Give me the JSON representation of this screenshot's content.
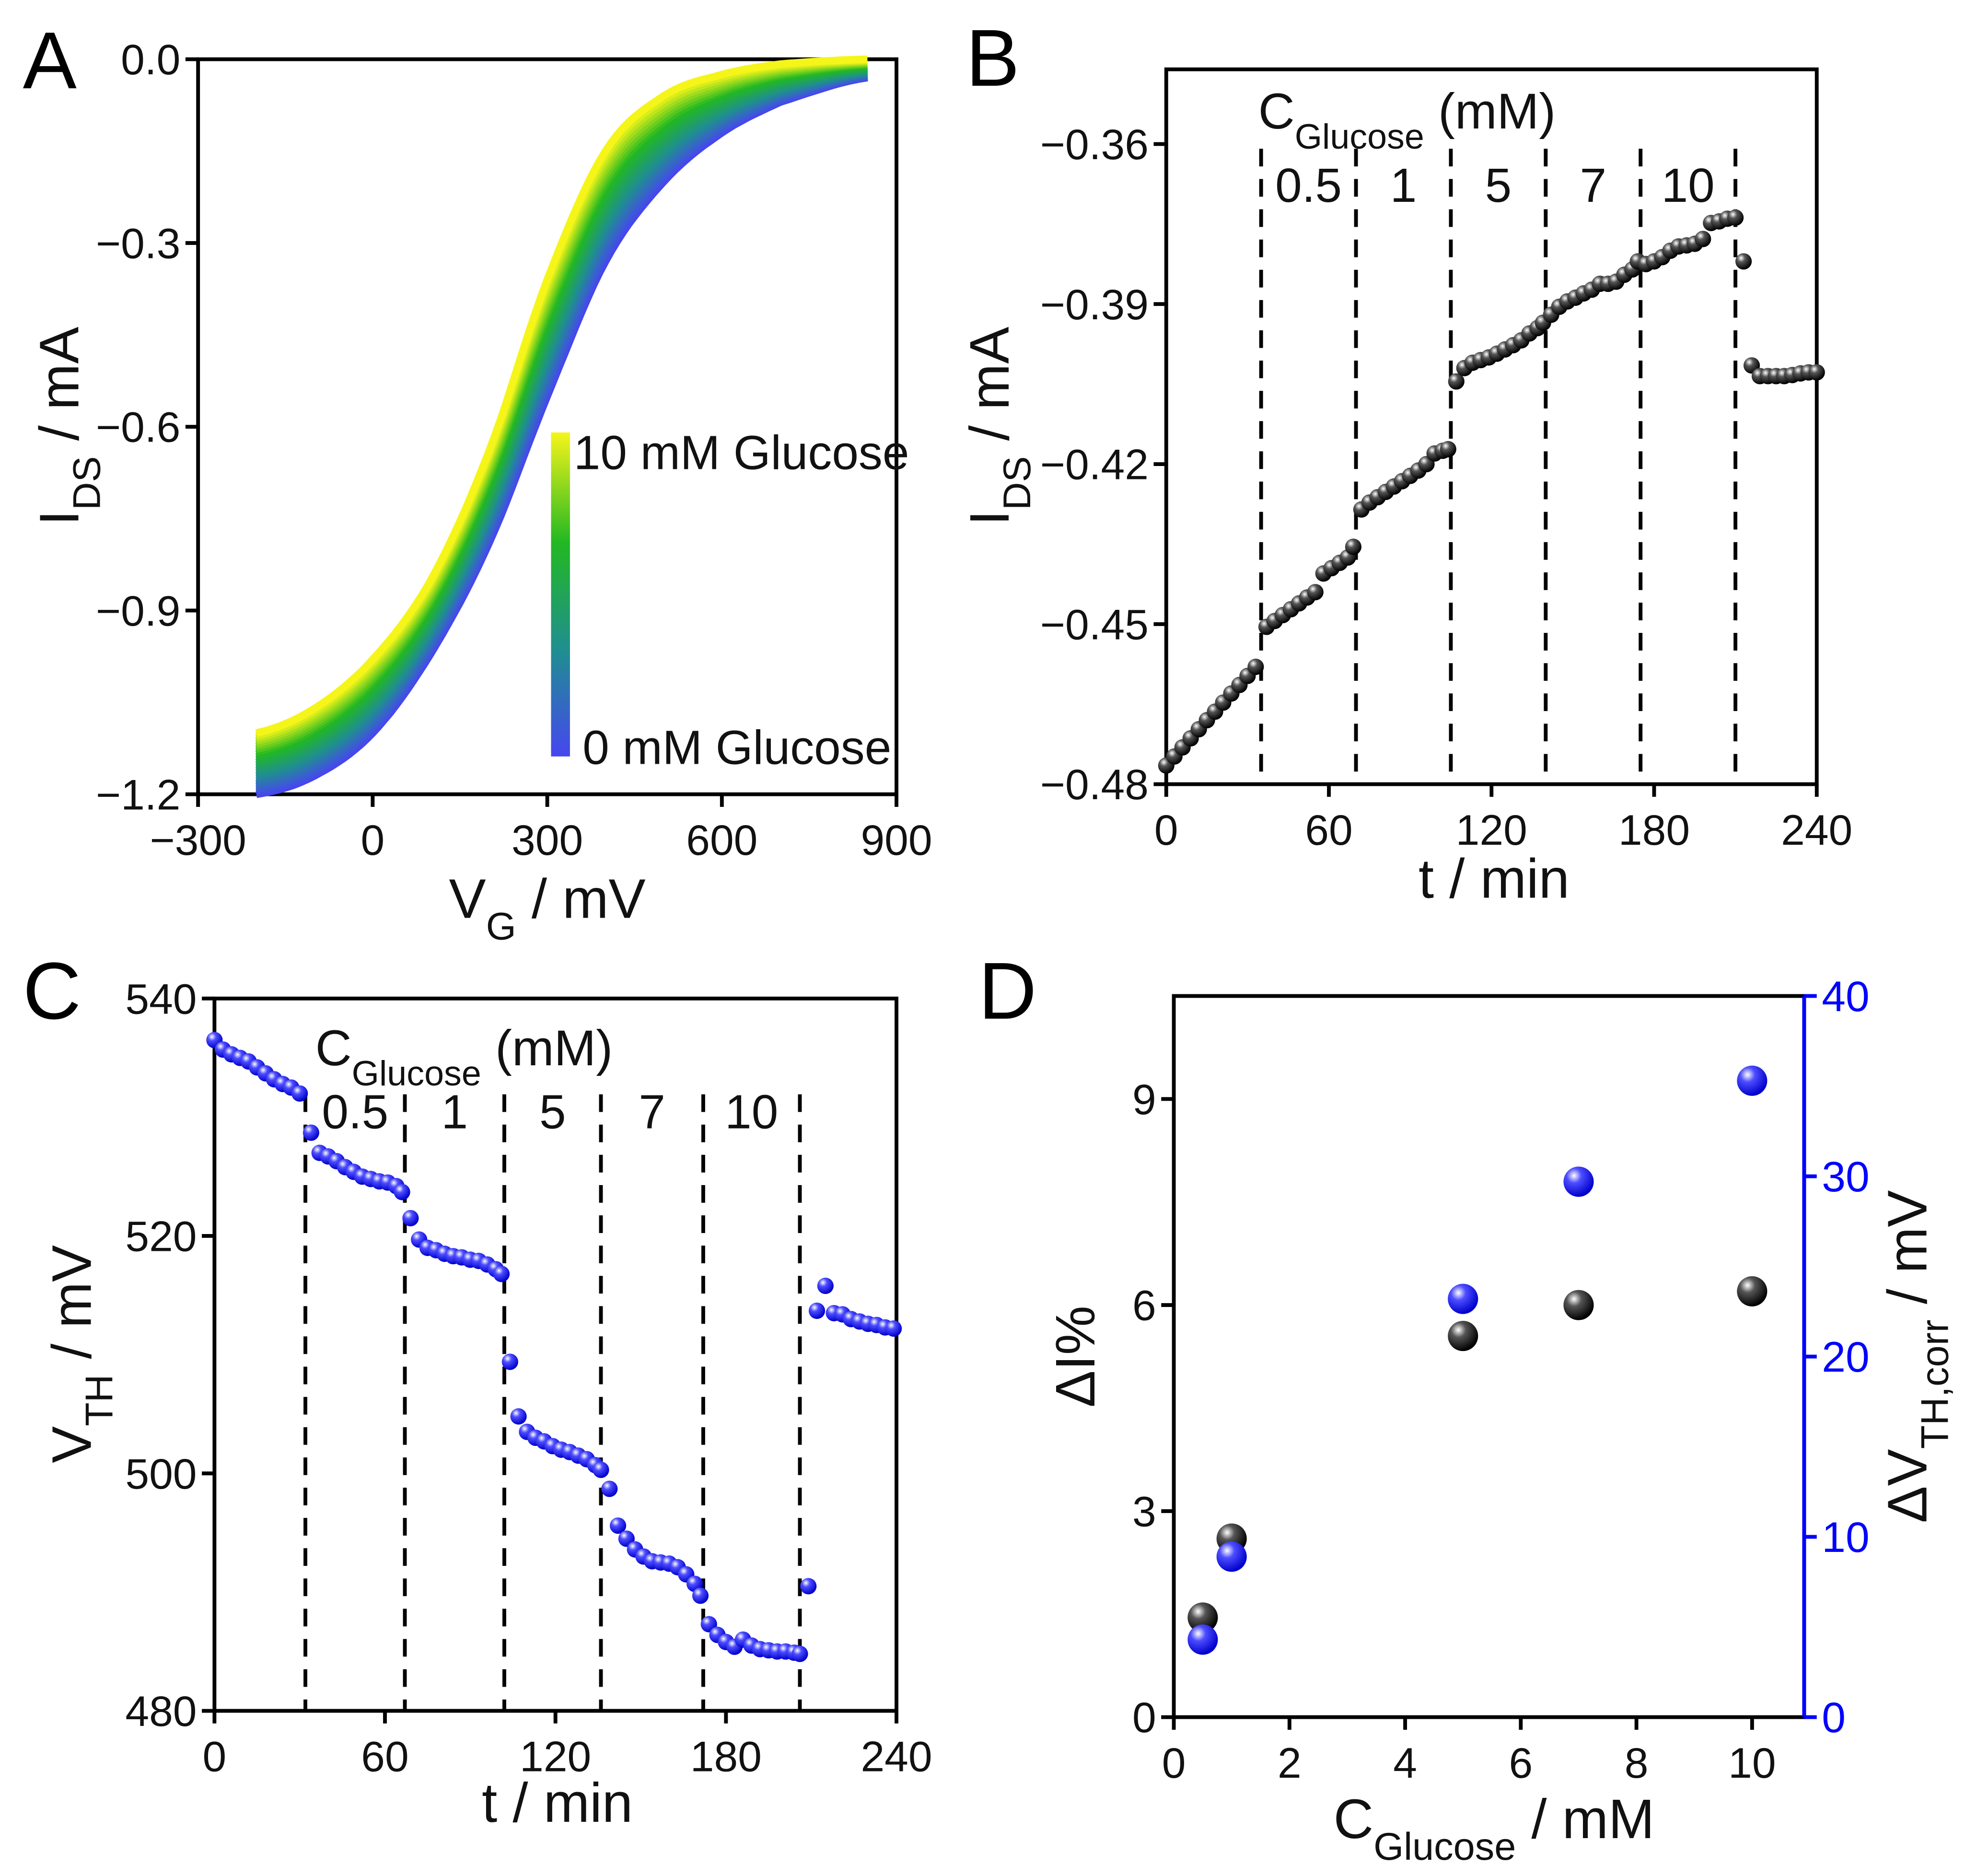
{
  "chart_data": [
    {
      "panel": "A",
      "type": "line",
      "xlabel": {
        "main": "V",
        "sub": "G",
        "rest": " / mV"
      },
      "ylabel": {
        "main": "I",
        "sub": "DS",
        "rest": " / mA"
      },
      "xlim": [
        -300,
        900
      ],
      "ylim": [
        -1.2,
        0.0
      ],
      "xticks": [
        "−300",
        "0",
        "300",
        "600",
        "900"
      ],
      "xtick_values": [
        -300,
        0,
        300,
        600,
        900
      ],
      "yticks": [
        "0.0",
        "−0.3",
        "−0.6",
        "−0.9",
        "−1.2"
      ],
      "ytick_values": [
        0.0,
        -0.3,
        -0.6,
        -0.9,
        -1.2
      ],
      "colorbar": {
        "top_label": "10 mM Glucose",
        "bottom_label": "0 mM Glucose",
        "colors": [
          "#4646f0",
          "#1f8f8f",
          "#22b822",
          "#f5f51a"
        ]
      },
      "curve_count": 24,
      "series": [
        {
          "name": "0 mM Glucose",
          "x": [
            -200,
            -100,
            0,
            100,
            200,
            300,
            400,
            500,
            600,
            700,
            850
          ],
          "y": [
            -1.2,
            -1.17,
            -1.1,
            -0.97,
            -0.79,
            -0.55,
            -0.33,
            -0.2,
            -0.12,
            -0.07,
            -0.03
          ]
        },
        {
          "name": "10 mM Glucose",
          "x": [
            -200,
            -100,
            0,
            100,
            200,
            300,
            400,
            500,
            600,
            700,
            850
          ],
          "y": [
            -1.1,
            -1.06,
            -0.98,
            -0.85,
            -0.64,
            -0.36,
            -0.15,
            -0.06,
            -0.025,
            -0.008,
            0.0
          ]
        }
      ]
    },
    {
      "panel": "B",
      "type": "scatter",
      "xlabel": "t / min",
      "ylabel": {
        "main": "I",
        "sub": "DS",
        "rest": " / mA"
      },
      "xlim": [
        0,
        240
      ],
      "ylim": [
        -0.48,
        -0.346
      ],
      "xticks": [
        "0",
        "60",
        "120",
        "180",
        "240"
      ],
      "xtick_values": [
        0,
        60,
        120,
        180,
        240
      ],
      "yticks": [
        "−0.36",
        "−0.39",
        "−0.42",
        "−0.45",
        "−0.48"
      ],
      "ytick_values": [
        -0.36,
        -0.39,
        -0.42,
        -0.45,
        -0.48
      ],
      "annotation": {
        "main": "C",
        "sub": "Glucose",
        "rest": " (mM)"
      },
      "dashed_x": [
        35,
        70,
        105,
        140,
        175,
        210
      ],
      "segment_labels": [
        "0.5",
        "1",
        "5",
        "7",
        "10"
      ],
      "points": [
        [
          0,
          -0.4765
        ],
        [
          3,
          -0.4748
        ],
        [
          6,
          -0.4731
        ],
        [
          9,
          -0.4714
        ],
        [
          12,
          -0.4697
        ],
        [
          15,
          -0.468
        ],
        [
          18,
          -0.4664
        ],
        [
          21,
          -0.4647
        ],
        [
          24,
          -0.463
        ],
        [
          27,
          -0.4614
        ],
        [
          30,
          -0.4597
        ],
        [
          33,
          -0.458
        ],
        [
          37,
          -0.4505
        ],
        [
          40,
          -0.4494
        ],
        [
          43,
          -0.4483
        ],
        [
          46,
          -0.4472
        ],
        [
          49,
          -0.4461
        ],
        [
          52,
          -0.445
        ],
        [
          55,
          -0.444
        ],
        [
          58,
          -0.4405
        ],
        [
          61,
          -0.4395
        ],
        [
          64,
          -0.4385
        ],
        [
          67,
          -0.4375
        ],
        [
          69,
          -0.4355
        ],
        [
          72,
          -0.4285
        ],
        [
          75,
          -0.4272
        ],
        [
          78,
          -0.4262
        ],
        [
          81,
          -0.4252
        ],
        [
          84,
          -0.4242
        ],
        [
          87,
          -0.4232
        ],
        [
          90,
          -0.4222
        ],
        [
          93,
          -0.4212
        ],
        [
          96,
          -0.42
        ],
        [
          99,
          -0.418
        ],
        [
          102,
          -0.4175
        ],
        [
          104,
          -0.4172
        ],
        [
          107,
          -0.4045
        ],
        [
          110,
          -0.402
        ],
        [
          113,
          -0.401
        ],
        [
          116,
          -0.4005
        ],
        [
          119,
          -0.4
        ],
        [
          122,
          -0.3993
        ],
        [
          125,
          -0.3985
        ],
        [
          128,
          -0.3977
        ],
        [
          131,
          -0.3968
        ],
        [
          134,
          -0.3955
        ],
        [
          137,
          -0.3945
        ],
        [
          139,
          -0.3935
        ],
        [
          142,
          -0.392
        ],
        [
          145,
          -0.3905
        ],
        [
          148,
          -0.3895
        ],
        [
          151,
          -0.3888
        ],
        [
          154,
          -0.388
        ],
        [
          157,
          -0.3873
        ],
        [
          160,
          -0.3862
        ],
        [
          163,
          -0.3862
        ],
        [
          166,
          -0.3858
        ],
        [
          169,
          -0.3845
        ],
        [
          172,
          -0.3835
        ],
        [
          174,
          -0.382
        ],
        [
          177,
          -0.3825
        ],
        [
          180,
          -0.382
        ],
        [
          183,
          -0.3812
        ],
        [
          186,
          -0.38
        ],
        [
          189,
          -0.3792
        ],
        [
          192,
          -0.379
        ],
        [
          195,
          -0.3787
        ],
        [
          198,
          -0.3778
        ],
        [
          201,
          -0.3748
        ],
        [
          204,
          -0.3745
        ],
        [
          207,
          -0.374
        ],
        [
          210,
          -0.3738
        ],
        [
          213,
          -0.382
        ],
        [
          216,
          -0.4015
        ],
        [
          219,
          -0.4035
        ],
        [
          222,
          -0.4035
        ],
        [
          225,
          -0.4035
        ],
        [
          228,
          -0.4035
        ],
        [
          231,
          -0.4033
        ],
        [
          234,
          -0.403
        ],
        [
          237,
          -0.4028
        ],
        [
          240,
          -0.4028
        ]
      ]
    },
    {
      "panel": "C",
      "type": "scatter",
      "xlabel": "t / min",
      "ylabel": {
        "main": "V",
        "sub": "TH",
        "rest": "  / mV"
      },
      "xlim": [
        0,
        240
      ],
      "ylim": [
        480,
        540
      ],
      "xticks": [
        "0",
        "60",
        "120",
        "180",
        "240"
      ],
      "xtick_values": [
        0,
        60,
        120,
        180,
        240
      ],
      "yticks": [
        "540",
        "520",
        "500",
        "480"
      ],
      "ytick_values": [
        540,
        520,
        500,
        480
      ],
      "annotation": {
        "main": "C",
        "sub": "Glucose",
        "rest": " (mM)"
      },
      "dashed_x": [
        32,
        67,
        102,
        136,
        172,
        206
      ],
      "segment_labels": [
        "0.5",
        "1",
        "5",
        "7",
        "10"
      ],
      "points": [
        [
          0,
          536.5
        ],
        [
          3,
          535.7
        ],
        [
          6,
          535.3
        ],
        [
          9,
          535
        ],
        [
          12,
          534.7
        ],
        [
          15,
          534.2
        ],
        [
          18,
          533.7
        ],
        [
          21,
          533.2
        ],
        [
          24,
          532.8
        ],
        [
          27,
          532.5
        ],
        [
          30,
          532
        ],
        [
          34,
          528.7
        ],
        [
          37,
          527
        ],
        [
          40,
          526.7
        ],
        [
          43,
          526.3
        ],
        [
          46,
          525.8
        ],
        [
          49,
          525.4
        ],
        [
          52,
          525
        ],
        [
          55,
          524.8
        ],
        [
          58,
          524.6
        ],
        [
          61,
          524.5
        ],
        [
          64,
          524.2
        ],
        [
          66,
          523.7
        ],
        [
          69,
          521.5
        ],
        [
          72,
          519.7
        ],
        [
          75,
          519
        ],
        [
          78,
          518.8
        ],
        [
          81,
          518.5
        ],
        [
          84,
          518.3
        ],
        [
          87,
          518.2
        ],
        [
          90,
          518
        ],
        [
          93,
          517.9
        ],
        [
          96,
          517.6
        ],
        [
          99,
          517.2
        ],
        [
          101,
          516.8
        ],
        [
          104,
          509.4
        ],
        [
          107,
          504.8
        ],
        [
          110,
          503.5
        ],
        [
          113,
          503
        ],
        [
          116,
          502.7
        ],
        [
          119,
          502.3
        ],
        [
          122,
          502
        ],
        [
          125,
          501.8
        ],
        [
          128,
          501.5
        ],
        [
          131,
          501.2
        ],
        [
          134,
          500.7
        ],
        [
          136,
          500.3
        ],
        [
          139,
          498.7
        ],
        [
          142,
          495.6
        ],
        [
          145,
          494.5
        ],
        [
          148,
          493.6
        ],
        [
          151,
          493
        ],
        [
          154,
          492.6
        ],
        [
          157,
          492.5
        ],
        [
          160,
          492.4
        ],
        [
          163,
          492.1
        ],
        [
          166,
          491.5
        ],
        [
          169,
          490.7
        ],
        [
          171,
          489.7
        ],
        [
          174,
          487.3
        ],
        [
          177,
          486.4
        ],
        [
          180,
          485.8
        ],
        [
          183,
          485.4
        ],
        [
          186,
          486
        ],
        [
          189,
          485.5
        ],
        [
          192,
          485.2
        ],
        [
          195,
          485.1
        ],
        [
          198,
          485
        ],
        [
          201,
          485
        ],
        [
          204,
          484.9
        ],
        [
          206,
          484.8
        ],
        [
          209,
          490.5
        ],
        [
          212,
          513.7
        ],
        [
          215,
          515.8
        ],
        [
          218,
          513.5
        ],
        [
          221,
          513.4
        ],
        [
          224,
          513
        ],
        [
          227,
          512.8
        ],
        [
          230,
          512.6
        ],
        [
          233,
          512.5
        ],
        [
          236,
          512.3
        ],
        [
          239,
          512.2
        ]
      ]
    },
    {
      "panel": "D",
      "type": "scatter",
      "xlabel": {
        "main": "C",
        "sub": "Glucose",
        "rest": "  / mM"
      },
      "ylabel": "ΔI%",
      "y2label": {
        "main": "ΔV",
        "sub": "TH,corr",
        "rest": " / mV"
      },
      "xlim": [
        0,
        10.9
      ],
      "ylim": [
        0,
        10.5
      ],
      "y2lim": [
        0,
        40
      ],
      "xticks": [
        "0",
        "2",
        "4",
        "6",
        "8",
        "10"
      ],
      "xtick_values": [
        0,
        2,
        4,
        6,
        8,
        10
      ],
      "yticks": [
        "0",
        "3",
        "6",
        "9"
      ],
      "ytick_values": [
        0,
        3,
        6,
        9
      ],
      "y2ticks": [
        "0",
        "10",
        "20",
        "30",
        "40"
      ],
      "y2tick_values": [
        0,
        10,
        20,
        30,
        40
      ],
      "x": [
        0.5,
        1,
        5,
        7,
        10
      ],
      "series": [
        {
          "name": "ΔI%",
          "axis": "left",
          "color": "#000000",
          "values": [
            1.45,
            2.6,
            5.55,
            6.0,
            6.2
          ]
        },
        {
          "name": "ΔV_TH,corr",
          "axis": "right",
          "color": "#0000ff",
          "values": [
            4.3,
            8.9,
            23.2,
            29.7,
            35.3
          ]
        }
      ]
    }
  ],
  "panel_letters": [
    "A",
    "B",
    "C",
    "D"
  ]
}
